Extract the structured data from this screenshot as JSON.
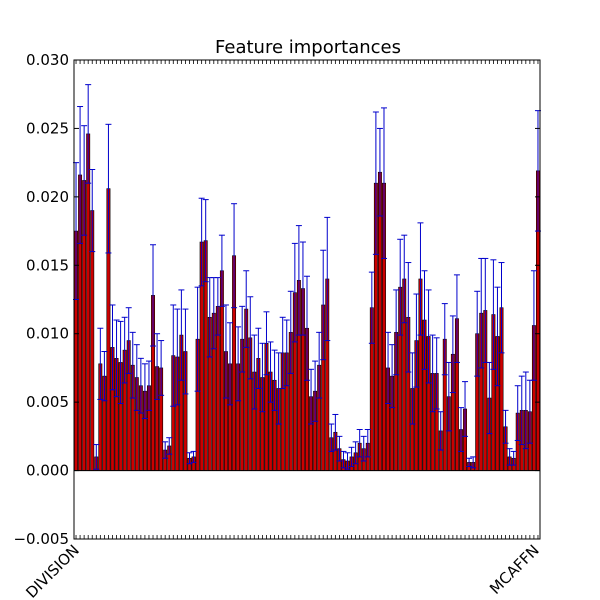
{
  "chart_data": {
    "type": "bar",
    "title": "Feature importances",
    "xlabel": "",
    "ylabel": "",
    "ylim": [
      -0.005,
      0.03
    ],
    "yticks": [
      "0.030",
      "0.025",
      "0.020",
      "0.015",
      "0.010",
      "0.005",
      "0.000",
      "−0.005"
    ],
    "ytick_values": [
      0.03,
      0.025,
      0.02,
      0.015,
      0.01,
      0.005,
      0.0,
      -0.005
    ],
    "grid": false,
    "bar_color": "#cc0000",
    "error_color": "#0000cc",
    "bar_edge_color": "#000000",
    "categories_visible_edge": [
      "DIVISION",
      "MCAFFN"
    ],
    "values": [
      0.0175,
      0.0216,
      0.0212,
      0.0246,
      0.019,
      0.001,
      0.0078,
      0.0069,
      0.0206,
      0.009,
      0.0082,
      0.0079,
      0.0088,
      0.0095,
      0.0077,
      0.0068,
      0.0062,
      0.0058,
      0.0062,
      0.0128,
      0.0076,
      0.0075,
      0.0015,
      0.0018,
      0.0084,
      0.0083,
      0.0099,
      0.0087,
      0.0009,
      0.001,
      0.0096,
      0.0167,
      0.0168,
      0.0112,
      0.0115,
      0.012,
      0.0146,
      0.0087,
      0.0078,
      0.0157,
      0.0078,
      0.0096,
      0.0118,
      0.0097,
      0.0072,
      0.0082,
      0.0068,
      0.0093,
      0.0072,
      0.0066,
      0.006,
      0.0086,
      0.0086,
      0.0101,
      0.013,
      0.0139,
      0.0133,
      0.0104,
      0.0054,
      0.0058,
      0.0077,
      0.0121,
      0.014,
      0.0024,
      0.0028,
      0.0016,
      0.0008,
      0.0007,
      0.001,
      0.0013,
      0.002,
      0.0016,
      0.002,
      0.0119,
      0.021,
      0.0218,
      0.021,
      0.0075,
      0.0069,
      0.0101,
      0.0134,
      0.014,
      0.0112,
      0.006,
      0.0095,
      0.014,
      0.011,
      0.0098,
      0.0071,
      0.0071,
      0.0029,
      0.0096,
      0.0054,
      0.0085,
      0.0111,
      0.003,
      0.0045,
      0.0006,
      0.0006,
      0.01,
      0.0115,
      0.0117,
      0.0053,
      0.0114,
      0.0098,
      0.0119,
      0.0032,
      0.001,
      0.0009,
      0.0042,
      0.0044,
      0.0044,
      0.0043,
      0.0106,
      0.0219
    ],
    "errors": [
      0.005,
      0.005,
      0.004,
      0.0036,
      0.003,
      0.0009,
      0.0026,
      0.0018,
      0.0047,
      0.0031,
      0.0028,
      0.003,
      0.0024,
      0.0024,
      0.0024,
      0.0024,
      0.002,
      0.002,
      0.0018,
      0.0037,
      0.0024,
      0.002,
      0.0006,
      0.0006,
      0.0037,
      0.0035,
      0.0033,
      0.0031,
      0.0004,
      0.0004,
      0.0038,
      0.0032,
      0.003,
      0.0029,
      0.0026,
      0.0021,
      0.0026,
      0.0034,
      0.003,
      0.0038,
      0.0027,
      0.0024,
      0.0028,
      0.003,
      0.0027,
      0.0022,
      0.0025,
      0.0023,
      0.0022,
      0.0022,
      0.0026,
      0.0026,
      0.0024,
      0.003,
      0.0036,
      0.004,
      0.0034,
      0.0038,
      0.002,
      0.0022,
      0.0024,
      0.004,
      0.0045,
      0.001,
      0.0013,
      0.0009,
      0.0006,
      0.0006,
      0.0007,
      0.0008,
      0.001,
      0.0009,
      0.001,
      0.0026,
      0.0052,
      0.0032,
      0.0055,
      0.0026,
      0.0023,
      0.0031,
      0.0035,
      0.0032,
      0.004,
      0.0026,
      0.0034,
      0.0041,
      0.0036,
      0.0034,
      0.0028,
      0.0026,
      0.0014,
      0.0026,
      0.0025,
      0.0028,
      0.0032,
      0.0016,
      0.002,
      0.0003,
      0.0004,
      0.0031,
      0.004,
      0.0038,
      0.0026,
      0.004,
      0.0036,
      0.0033,
      0.0012,
      0.0006,
      0.0005,
      0.002,
      0.0025,
      0.0028,
      0.0023,
      0.004,
      0.0044
    ]
  }
}
